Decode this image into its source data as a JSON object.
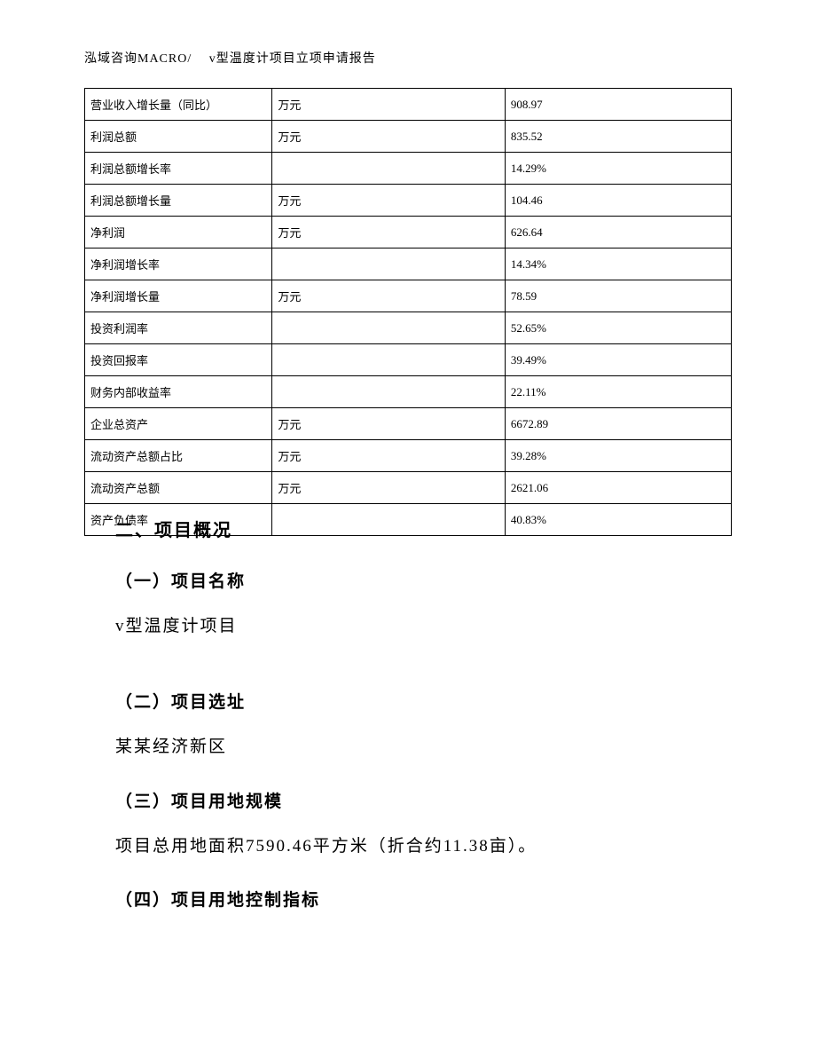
{
  "header": {
    "text": "泓域咨询MACRO/　 v型温度计项目立项申请报告"
  },
  "table": {
    "rows": [
      {
        "c1": "营业收入增长量（同比）",
        "c2": "万元",
        "c3": "908.97"
      },
      {
        "c1": "利润总额",
        "c2": "万元",
        "c3": "835.52"
      },
      {
        "c1": "利润总额增长率",
        "c2": "",
        "c3": "14.29%"
      },
      {
        "c1": "利润总额增长量",
        "c2": "万元",
        "c3": "104.46"
      },
      {
        "c1": "净利润",
        "c2": "万元",
        "c3": "626.64"
      },
      {
        "c1": "净利润增长率",
        "c2": "",
        "c3": "14.34%"
      },
      {
        "c1": "净利润增长量",
        "c2": "万元",
        "c3": "78.59"
      },
      {
        "c1": "投资利润率",
        "c2": "",
        "c3": "52.65%"
      },
      {
        "c1": "投资回报率",
        "c2": "",
        "c3": "39.49%"
      },
      {
        "c1": "财务内部收益率",
        "c2": "",
        "c3": "22.11%"
      },
      {
        "c1": "企业总资产",
        "c2": "万元",
        "c3": "6672.89"
      },
      {
        "c1": "流动资产总额占比",
        "c2": "万元",
        "c3": "39.28%"
      },
      {
        "c1": "流动资产总额",
        "c2": "万元",
        "c3": "2621.06"
      },
      {
        "c1": "资产负债率",
        "c2": "",
        "c3": "40.83%"
      }
    ]
  },
  "sections": {
    "main_title": "二、项目概况",
    "sub1_title": "（一）项目名称",
    "sub1_text": "v型温度计项目",
    "sub2_title": "（二）项目选址",
    "sub2_text": "某某经济新区",
    "sub3_title": "（三）项目用地规模",
    "sub3_text": "项目总用地面积7590.46平方米（折合约11.38亩）。",
    "sub4_title": "（四）项目用地控制指标"
  }
}
